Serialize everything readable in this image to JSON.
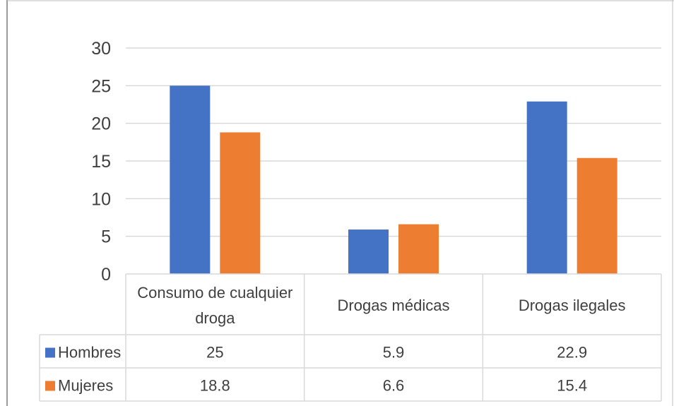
{
  "chart_data": {
    "type": "bar",
    "categories": [
      [
        "Consumo de cualquier",
        "droga"
      ],
      [
        "Drogas médicas"
      ],
      [
        "Drogas ilegales"
      ]
    ],
    "series": [
      {
        "name": "Hombres",
        "values": [
          25,
          5.9,
          22.9
        ],
        "value_labels": [
          "25",
          "5.9",
          "22.9"
        ],
        "color": "#4472C4"
      },
      {
        "name": "Mujeres",
        "values": [
          18.8,
          6.6,
          15.4
        ],
        "value_labels": [
          "18.8",
          "6.6",
          "15.4"
        ],
        "color": "#ED7D31"
      }
    ],
    "yticks": [
      "0",
      "5",
      "10",
      "15",
      "20",
      "25",
      "30"
    ],
    "ylim": [
      0,
      30
    ],
    "grid": true,
    "data_table": true
  }
}
